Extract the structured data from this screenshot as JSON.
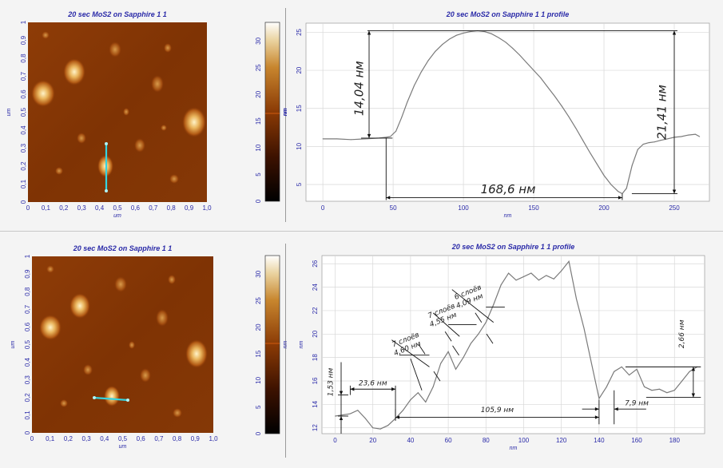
{
  "top": {
    "afm_title": "20 sec MoS2 on Sapphire 1 1",
    "profile_title": "20 sec MoS2 on Sapphire 1 1 profile",
    "afm_x_ticks": [
      "0",
      "0,1",
      "0,2",
      "0,3",
      "0,4",
      "0,5",
      "0,6",
      "0,7",
      "0,8",
      "0,9",
      "1,0"
    ],
    "afm_y_ticks": [
      "0",
      "0,1",
      "0,2",
      "0,3",
      "0,4",
      "0,5",
      "0,6",
      "0,7",
      "0,8",
      "0,9",
      "1"
    ],
    "afm_unit": "um",
    "colorbar_ticks": [
      "0",
      "5",
      "10",
      "15",
      "20",
      "25",
      "30"
    ],
    "colorbar_unit": "nm",
    "profile_x_ticks": [
      "0",
      "50",
      "100",
      "150",
      "200",
      "250"
    ],
    "profile_y_ticks": [
      "5",
      "10",
      "15",
      "20",
      "25"
    ],
    "profile_xlabel": "nm",
    "profile_ylabel": "nm",
    "annotations": {
      "left_height": "14,04 нм",
      "right_height": "21,41 нм",
      "width": "168,6 нм"
    }
  },
  "bottom": {
    "afm_title": "20 sec MoS2 on Sapphire 1 1",
    "profile_title": "20 sec MoS2 on Sapphire 1 1 profile",
    "afm_x_ticks": [
      "0",
      "0,1",
      "0,2",
      "0,3",
      "0,4",
      "0,5",
      "0,6",
      "0,7",
      "0,8",
      "0,9",
      "1,0"
    ],
    "afm_y_ticks": [
      "0",
      "0,1",
      "0,2",
      "0,3",
      "0,4",
      "0,5",
      "0,6",
      "0,7",
      "0,8",
      "0,9",
      "1"
    ],
    "afm_unit": "um",
    "colorbar_ticks": [
      "0",
      "5",
      "10",
      "15",
      "20",
      "25",
      "30"
    ],
    "colorbar_unit": "nm",
    "profile_x_ticks": [
      "0",
      "20",
      "40",
      "60",
      "80",
      "100",
      "120",
      "140",
      "160",
      "180"
    ],
    "profile_y_ticks": [
      "12",
      "14",
      "16",
      "18",
      "20",
      "22",
      "24",
      "26"
    ],
    "profile_xlabel": "nm",
    "profile_ylabel": "nm",
    "annotations": {
      "step1": "1,53 нм",
      "w1": "23,6 нм",
      "w2": "105,9 нм",
      "w3": "7,9 нм",
      "step_right": "2,66 нм",
      "layers1a": "7 слоёв",
      "layers1b": "4,60 нм",
      "layers2a": "7 слоёв",
      "layers2b": "4,55 нм",
      "layers3a": "6 слоёв",
      "layers3b": "4,09 нм"
    }
  },
  "chart_data": [
    {
      "type": "line",
      "title": "20 sec MoS2 on Sapphire 1 1 profile",
      "xlabel": "nm",
      "ylabel": "nm",
      "xlim": [
        -12,
        275
      ],
      "ylim": [
        2.8,
        26.2
      ],
      "series": [
        {
          "x": [
            0,
            10,
            20,
            30,
            40,
            45,
            48,
            52,
            56,
            60,
            65,
            70,
            75,
            80,
            85,
            90,
            95,
            100,
            105,
            110,
            115,
            120,
            125,
            130,
            135,
            140,
            145,
            150,
            155,
            160,
            165,
            170,
            175,
            180,
            185,
            190,
            195,
            200,
            205,
            210,
            213,
            216,
            220,
            224,
            228,
            232,
            236,
            240,
            245,
            250,
            255,
            260,
            265,
            268
          ],
          "y": [
            11,
            11,
            10.9,
            11,
            11.1,
            11.2,
            11.3,
            12,
            13.8,
            15.8,
            18,
            19.8,
            21.3,
            22.5,
            23.4,
            24.1,
            24.6,
            24.9,
            25.1,
            25.2,
            25.1,
            24.8,
            24.3,
            23.7,
            22.9,
            22,
            21,
            20,
            19,
            17.8,
            16.6,
            15.3,
            13.9,
            12.4,
            10.8,
            9.2,
            7.7,
            6.2,
            5,
            4.1,
            3.8,
            4.5,
            7.5,
            9.6,
            10.3,
            10.5,
            10.6,
            10.8,
            11,
            11.2,
            11.3,
            11.5,
            11.6,
            11.3
          ]
        }
      ]
    },
    {
      "type": "line",
      "title": "20 sec MoS2 on Sapphire 1 1 profile",
      "xlabel": "nm",
      "ylabel": "nm",
      "xlim": [
        -7,
        196
      ],
      "ylim": [
        11.5,
        26.7
      ],
      "series": [
        {
          "x": [
            0,
            8,
            12,
            16,
            20,
            24,
            28,
            32,
            36,
            40,
            44,
            48,
            52,
            56,
            60,
            64,
            68,
            72,
            76,
            80,
            84,
            88,
            92,
            96,
            100,
            104,
            108,
            112,
            116,
            120,
            124,
            128,
            132,
            136,
            140,
            144,
            148,
            152,
            156,
            160,
            164,
            168,
            172,
            176,
            180,
            184,
            188,
            192
          ],
          "y": [
            13,
            13.2,
            13.5,
            12.8,
            12,
            11.9,
            12.2,
            12.8,
            13.5,
            14.4,
            15,
            14.2,
            15.5,
            17.5,
            18.5,
            17,
            18,
            19.2,
            20,
            21,
            22.5,
            24.2,
            25.2,
            24.6,
            24.9,
            25.2,
            24.6,
            25,
            24.7,
            25.4,
            26.2,
            23,
            20.5,
            17.5,
            14.5,
            15.5,
            16.8,
            17.2,
            16.5,
            17,
            15.5,
            15.2,
            15.3,
            15,
            15.2,
            16,
            16.8,
            17.2
          ]
        }
      ]
    }
  ]
}
